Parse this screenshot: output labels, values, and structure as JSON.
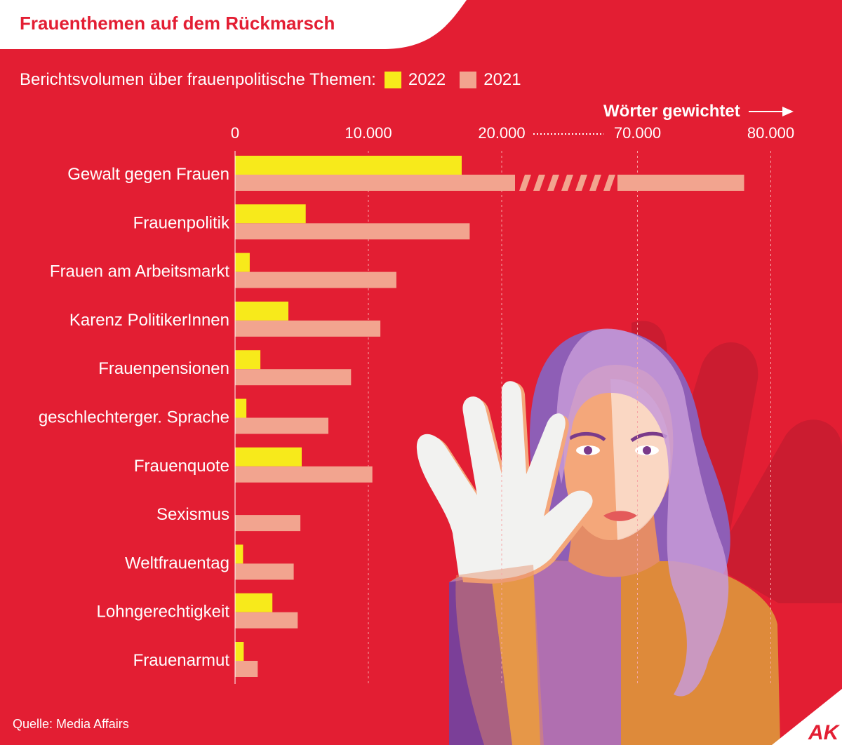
{
  "header": {
    "title": "Frauenthemen auf dem Rückmarsch"
  },
  "legend": {
    "intro": "Berichtsvolumen über frauenpolitische Themen:",
    "items": [
      {
        "label": "2022",
        "color": "#f7ea1b"
      },
      {
        "label": "2021",
        "color": "#f2a48f"
      }
    ]
  },
  "unit_label": "Wörter gewichtet",
  "source": "Quelle: Media Affairs",
  "logo_text": "AK",
  "colors": {
    "background": "#e31e33",
    "grid": "#f7a7a7",
    "text": "#ffffff"
  },
  "chart_data": {
    "type": "bar",
    "orientation": "horizontal",
    "title": "Frauenthemen auf dem Rückmarsch",
    "subtitle": "Berichtsvolumen über frauenpolitische Themen:",
    "xlabel": "Wörter gewichtet",
    "axis_break": {
      "from": 21000,
      "to": 68500
    },
    "ticks": [
      {
        "value": 0,
        "label": "0"
      },
      {
        "value": 10000,
        "label": "10.000"
      },
      {
        "value": 20000,
        "label": "20.000"
      },
      {
        "value": 70000,
        "label": "70.000"
      },
      {
        "value": 80000,
        "label": "80.000"
      }
    ],
    "categories": [
      "Gewalt gegen Frauen",
      "Frauenpolitik",
      "Frauen am Arbeitsmarkt",
      "Karenz PolitikerInnen",
      "Frauenpensionen",
      "geschlechterger. Sprache",
      "Frauenquote",
      "Sexismus",
      "Weltfrauentag",
      "Lohngerechtigkeit",
      "Frauenarmut"
    ],
    "series": [
      {
        "name": "2022",
        "values": [
          17000,
          5300,
          1100,
          4000,
          1900,
          850,
          5000,
          0,
          600,
          2800,
          650
        ]
      },
      {
        "name": "2021",
        "values": [
          78000,
          17600,
          12100,
          10900,
          8700,
          7000,
          10300,
          4900,
          4400,
          4700,
          1700
        ]
      }
    ],
    "xlim": [
      0,
      80000
    ],
    "grid": true,
    "legend_position": "top-left"
  }
}
